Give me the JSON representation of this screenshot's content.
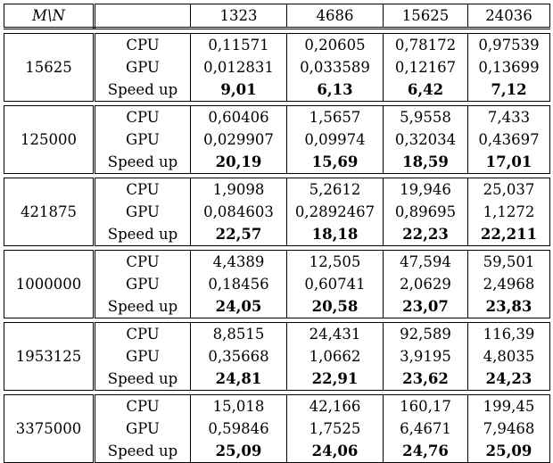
{
  "table": {
    "corner_label": "M\\N",
    "columns": [
      "1323",
      "4686",
      "15625",
      "24036"
    ],
    "groups": [
      {
        "m": "15625",
        "rows": [
          {
            "label": "CPU",
            "values": [
              "0,11571",
              "0,20605",
              "0,78172",
              "0,97539"
            ],
            "bold": false
          },
          {
            "label": "GPU",
            "values": [
              "0,012831",
              "0,033589",
              "0,12167",
              "0,13699"
            ],
            "bold": false
          },
          {
            "label": "Speed up",
            "values": [
              "9,01",
              "6,13",
              "6,42",
              "7,12"
            ],
            "bold": true
          }
        ]
      },
      {
        "m": "125000",
        "rows": [
          {
            "label": "CPU",
            "values": [
              "0,60406",
              "1,5657",
              "5,9558",
              "7,433"
            ],
            "bold": false
          },
          {
            "label": "GPU",
            "values": [
              "0,029907",
              "0,09974",
              "0,32034",
              "0,43697"
            ],
            "bold": false
          },
          {
            "label": "Speed up",
            "values": [
              "20,19",
              "15,69",
              "18,59",
              "17,01"
            ],
            "bold": true
          }
        ]
      },
      {
        "m": "421875",
        "rows": [
          {
            "label": "CPU",
            "values": [
              "1,9098",
              "5,2612",
              "19,946",
              "25,037"
            ],
            "bold": false
          },
          {
            "label": "GPU",
            "values": [
              "0,084603",
              "0,2892467",
              "0,89695",
              "1,1272"
            ],
            "bold": false
          },
          {
            "label": "Speed up",
            "values": [
              "22,57",
              "18,18",
              "22,23",
              "22,211"
            ],
            "bold": true
          }
        ]
      },
      {
        "m": "1000000",
        "rows": [
          {
            "label": "CPU",
            "values": [
              "4,4389",
              "12,505",
              "47,594",
              "59,501"
            ],
            "bold": false
          },
          {
            "label": "GPU",
            "values": [
              "0,18456",
              "0,60741",
              "2,0629",
              "2,4968"
            ],
            "bold": false
          },
          {
            "label": "Speed up",
            "values": [
              "24,05",
              "20,58",
              "23,07",
              "23,83"
            ],
            "bold": true
          }
        ]
      },
      {
        "m": "1953125",
        "rows": [
          {
            "label": "CPU",
            "values": [
              "8,8515",
              "24,431",
              "92,589",
              "116,39"
            ],
            "bold": false
          },
          {
            "label": "GPU",
            "values": [
              "0,35668",
              "1,0662",
              "3,9195",
              "4,8035"
            ],
            "bold": false
          },
          {
            "label": "Speed up",
            "values": [
              "24,81",
              "22,91",
              "23,62",
              "24,23"
            ],
            "bold": true
          }
        ]
      },
      {
        "m": "3375000",
        "rows": [
          {
            "label": "CPU",
            "values": [
              "15,018",
              "42,166",
              "160,17",
              "199,45"
            ],
            "bold": false
          },
          {
            "label": "GPU",
            "values": [
              "0,59846",
              "1,7525",
              "6,4671",
              "7,9468"
            ],
            "bold": false
          },
          {
            "label": "Speed up",
            "values": [
              "25,09",
              "24,06",
              "24,76",
              "25,09"
            ],
            "bold": true
          }
        ]
      }
    ]
  }
}
